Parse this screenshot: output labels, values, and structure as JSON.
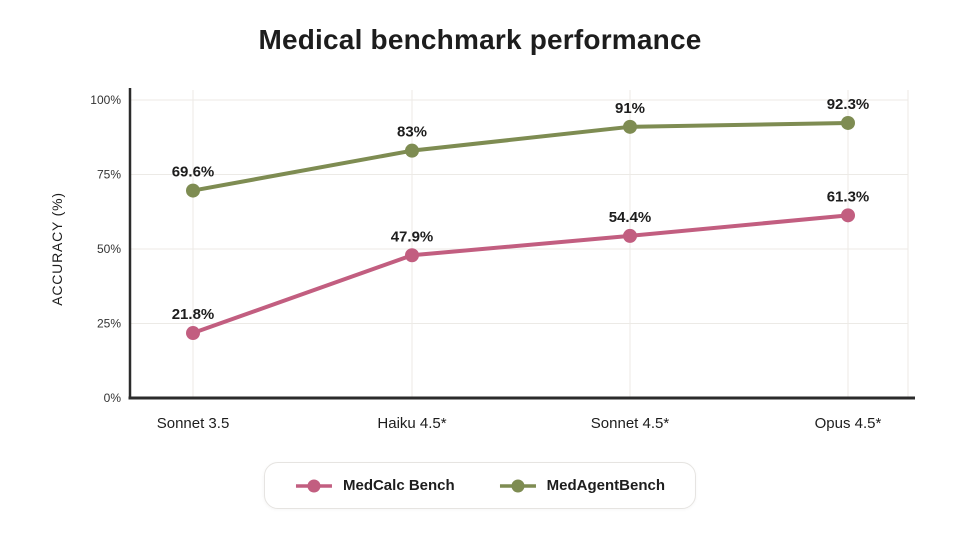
{
  "title": "Medical benchmark performance",
  "colors": {
    "medcalc": "#c25e80",
    "medagent": "#7e8c52",
    "grid": "#eceae6",
    "axis": "#2b2b2b",
    "text": "#1d1d1d",
    "tick_text": "#333333",
    "background": "#ffffff",
    "legend_border": "#e6e4e1"
  },
  "chart_data": {
    "type": "line",
    "categories": [
      "Sonnet 3.5",
      "Haiku 4.5*",
      "Sonnet 4.5*",
      "Opus 4.5*"
    ],
    "series": [
      {
        "name": "MedCalc Bench",
        "color": "#c25e80",
        "values": [
          21.8,
          47.9,
          54.4,
          61.3
        ],
        "labels": [
          "21.8%",
          "47.9%",
          "54.4%",
          "61.3%"
        ]
      },
      {
        "name": "MedAgentBench",
        "color": "#7e8c52",
        "values": [
          69.6,
          83,
          91,
          92.3
        ],
        "labels": [
          "69.6%",
          "83%",
          "91%",
          "92.3%"
        ]
      }
    ],
    "title": "Medical benchmark performance",
    "xlabel": "",
    "ylabel": "ACCURACY (%)",
    "yticks": [
      "0%",
      "25%",
      "50%",
      "75%",
      "100%"
    ],
    "ylim": [
      0,
      100
    ],
    "grid": true,
    "legend_position": "bottom"
  }
}
